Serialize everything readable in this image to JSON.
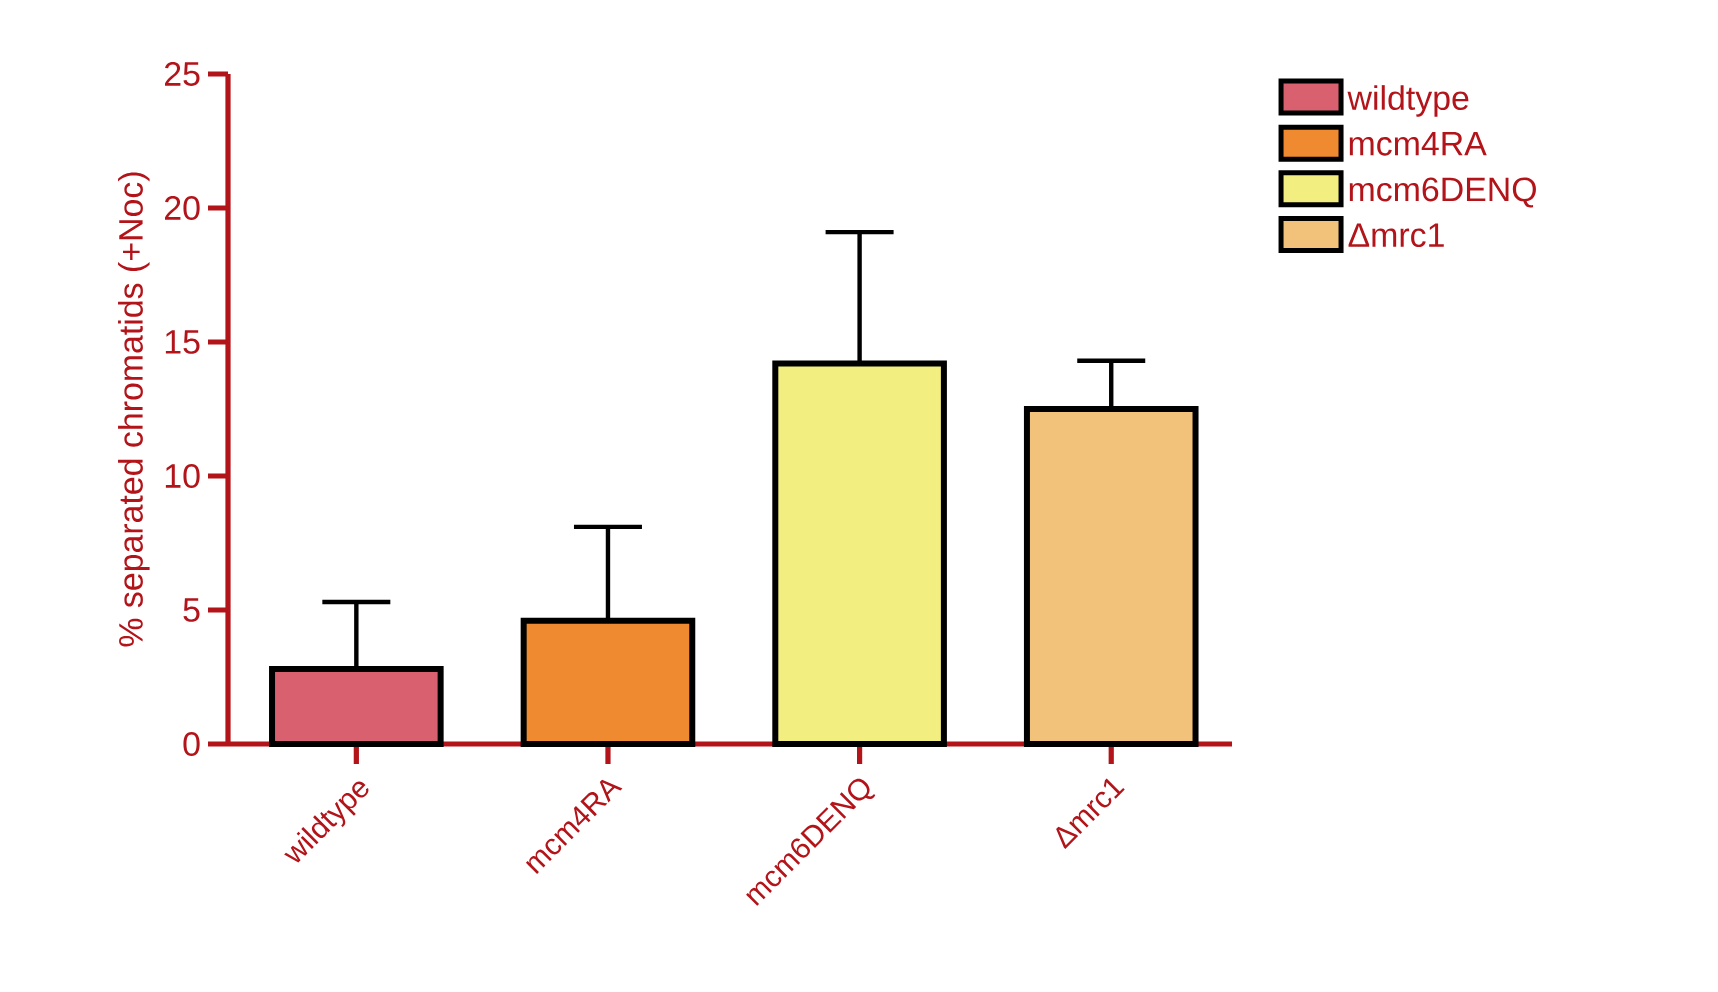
{
  "chart_data": {
    "type": "bar",
    "ylabel": "% separated chromatids (+Noc)",
    "categories": [
      "wildtype",
      "mcm4RA",
      "mcm6DENQ",
      "Δmrc1"
    ],
    "series": [
      {
        "name": "wildtype",
        "color": "#d9606e",
        "values": [
          2.8,
          null,
          null,
          null
        ],
        "errors": [
          [
            2.8,
            5.3
          ],
          null,
          null,
          null
        ]
      },
      {
        "name": "mcm4RA",
        "color": "#f08a30",
        "values": [
          null,
          4.6,
          null,
          null
        ],
        "errors": [
          null,
          [
            4.6,
            8.1
          ],
          null,
          null
        ]
      },
      {
        "name": "mcm6DENQ",
        "color": "#f3ee80",
        "values": [
          null,
          null,
          14.2,
          null
        ],
        "errors": [
          null,
          null,
          [
            14.2,
            19.1
          ],
          null
        ]
      },
      {
        "name": "Δmrc1",
        "color": "#f2c27a",
        "values": [
          null,
          null,
          null,
          12.5
        ],
        "errors": [
          null,
          null,
          null,
          [
            12.5,
            14.3
          ]
        ]
      }
    ],
    "ylim": [
      0,
      25
    ],
    "yticks": [
      0,
      5,
      10,
      15,
      20,
      25
    ],
    "legend": "right"
  }
}
